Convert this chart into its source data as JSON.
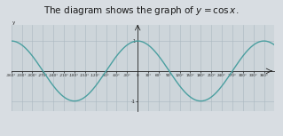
{
  "title": "The diagram shows the graph of $y = \\cos x$.",
  "title_fontsize": 7.5,
  "line_color": "#4a9fa0",
  "line_width": 1.0,
  "bg_color": "#d8dde2",
  "plot_bg_color": "#cdd5da",
  "grid_color": "#aab8c0",
  "axis_color": "#222222",
  "x_min": -360,
  "x_max": 390,
  "y_min": -1.35,
  "y_max": 1.55,
  "x_tick_step": 30,
  "y_ticks": [
    -1,
    1
  ],
  "ylabel": "y",
  "x_label_step": 30,
  "tick_fontsize": 3.0
}
